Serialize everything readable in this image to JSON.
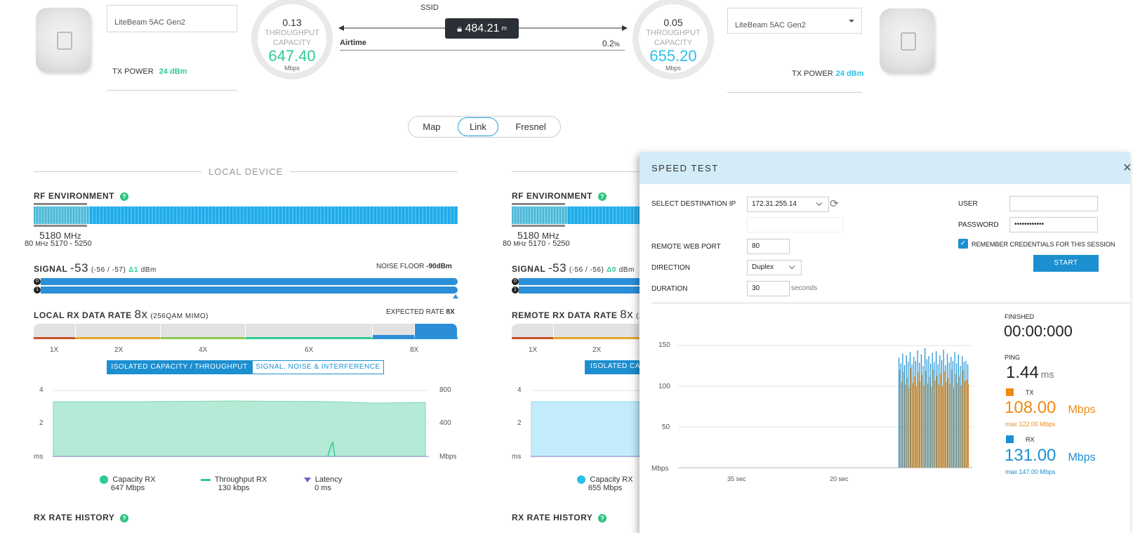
{
  "colors": {
    "accent": "#1c9ad6",
    "green": "#2ecc8f",
    "cyan": "#2bc0e8",
    "orange": "#f08a12",
    "blue": "#1a8fd4"
  },
  "top": {
    "ssid_label": "SSID",
    "distance": "484.21",
    "distance_unit": "m",
    "airtime_label": "Airtime",
    "airtime_value": "0.2",
    "airtime_unit": "%",
    "local": {
      "device_name": "LiteBeam 5AC Gen2",
      "tx_power_label": "TX POWER",
      "tx_power_value": "24 dBm",
      "gauge_top": "0.13",
      "gauge_label1": "THROUGHPUT",
      "gauge_label2": "CAPACITY",
      "gauge_value": "647.40",
      "gauge_unit": "Mbps"
    },
    "remote": {
      "device_name": "LiteBeam 5AC Gen2",
      "tx_power_label": "TX POWER",
      "tx_power_value": "24 dBm",
      "gauge_top": "0.05",
      "gauge_label1": "THROUGHPUT",
      "gauge_label2": "CAPACITY",
      "gauge_value": "655.20",
      "gauge_unit": "Mbps"
    }
  },
  "tabs": {
    "map": "Map",
    "link": "Link",
    "fresnel": "Fresnel"
  },
  "local_panel": {
    "section_title": "LOCAL DEVICE",
    "rf_env": "RF ENVIRONMENT",
    "freq": "5180",
    "freq_unit": "MHz",
    "channel_width": "80",
    "channel_width_unit": "MHz",
    "channel_range": "5170 - 5250",
    "signal_label": "SIGNAL",
    "signal_value": "-53",
    "signal_chains": "(-56 / -57)",
    "signal_delta": "Δ1",
    "signal_unit": "dBm",
    "noise_floor_label": "NOISE FLOOR",
    "noise_floor_value": "-90",
    "noise_floor_unit": "dBm",
    "rx_rate_label": "LOCAL RX DATA RATE",
    "rx_rate_value": "8x",
    "rx_rate_mod": "(256QAM MIMO)",
    "expected_label": "EXPECTED RATE",
    "expected_value": "8X",
    "rate_ticks": [
      "1X",
      "2X",
      "4X",
      "6X",
      "8X"
    ],
    "btn_capacity": "ISOLATED CAPACITY / THROUGHPUT",
    "btn_signal": "SIGNAL, NOISE & INTERFERENCE",
    "chart_left_ticks": [
      "4",
      "2",
      "ms"
    ],
    "chart_right_ticks": [
      "800",
      "400",
      "Mbps"
    ],
    "legend": [
      {
        "name": "Capacity RX",
        "value": "647 Mbps"
      },
      {
        "name": "Throughput RX",
        "value": "130 kbps"
      },
      {
        "name": "Latency",
        "value": "0 ms"
      }
    ],
    "history": "RX RATE HISTORY"
  },
  "remote_panel": {
    "rf_env": "RF ENVIRONMENT",
    "freq": "5180",
    "freq_unit": "MHz",
    "channel_width": "80",
    "channel_width_unit": "MHz",
    "channel_range": "5170 - 5250",
    "signal_label": "SIGNAL",
    "signal_value": "-53",
    "signal_chains": "(-56 / -56)",
    "signal_delta": "Δ0",
    "signal_unit": "dBm",
    "rx_rate_label": "REMOTE RX DATA RATE",
    "rx_rate_value": "8x",
    "rx_rate_mod": "(2",
    "rate_ticks": [
      "1X",
      "2X"
    ],
    "btn_capacity": "ISOLATED CA",
    "chart_left_ticks": [
      "4",
      "2",
      "ms"
    ],
    "legend": [
      {
        "name": "Capacity RX",
        "value": "655 Mbps"
      }
    ],
    "history": "RX RATE HISTORY"
  },
  "speedtest": {
    "title": "SPEED TEST",
    "dest_label": "SELECT DESTINATION IP",
    "dest_value": "172.31.255.14",
    "port_label": "REMOTE WEB PORT",
    "port_value": "80",
    "direction_label": "DIRECTION",
    "direction_value": "Duplex",
    "duration_label": "DURATION",
    "duration_value": "30",
    "duration_unit": "seconds",
    "user_label": "USER",
    "password_label": "PASSWORD",
    "password_value": "••••••••••••",
    "remember_label": "REMEMBER CREDENTIALS FOR THIS SESSION",
    "start_label": "START",
    "finished_label": "FINISHED",
    "finished_value": "00:00:000",
    "ping_label": "PING",
    "ping_value": "1.44",
    "ping_unit": "ms",
    "tx_label": "TX",
    "tx_value": "108.00",
    "tx_unit": "Mbps",
    "tx_max": "max 122.00 Mbps",
    "rx_label": "RX",
    "rx_value": "131.00",
    "rx_unit": "Mbps",
    "rx_max": "max 147.00 Mbps"
  },
  "chart_data": {
    "type": "bar",
    "title": "",
    "ylabel": "Mbps",
    "ylim": [
      0,
      160
    ],
    "y_ticks": [
      "150",
      "100",
      "50",
      "Mbps"
    ],
    "x_ticks": [
      "35 sec",
      "20 sec"
    ],
    "series": [
      {
        "name": "TX",
        "color": "#f08a12",
        "values": [
          120,
          105,
          118,
          102,
          110,
          98,
          122,
          104,
          112,
          100,
          117,
          106,
          114,
          101,
          119,
          103,
          111,
          99,
          121,
          107,
          113,
          102,
          116,
          100,
          118,
          105,
          110,
          103,
          120,
          98,
          115,
          104,
          112,
          101,
          119,
          106,
          108,
          103
        ]
      },
      {
        "name": "RX",
        "color": "#1a8fd4",
        "values": [
          135,
          128,
          140,
          126,
          138,
          130,
          142,
          127,
          136,
          131,
          144,
          129,
          139,
          125,
          147,
          133,
          137,
          128,
          141,
          130,
          143,
          127,
          138,
          132,
          145,
          126,
          140,
          129,
          136,
          131,
          142,
          128,
          139,
          125,
          137,
          130,
          131,
          127
        ]
      }
    ]
  }
}
